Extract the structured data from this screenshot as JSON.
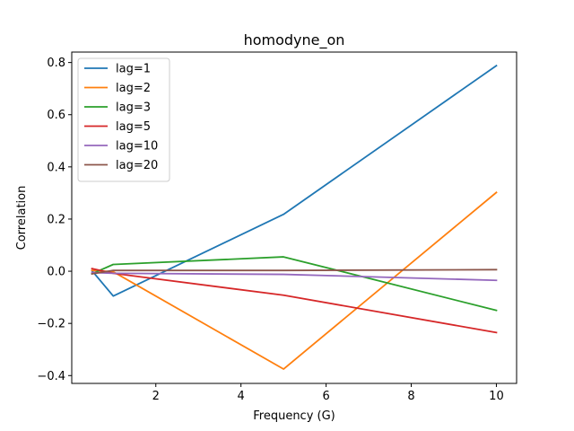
{
  "chart_data": {
    "type": "line",
    "title": "homodyne_on",
    "xlabel": "Frequency (G)",
    "ylabel": "Correlation",
    "xlim": [
      0.025,
      10.475
    ],
    "ylim": [
      -0.43,
      0.84
    ],
    "xticks": [
      2,
      4,
      6,
      8,
      10
    ],
    "yticks": [
      -0.4,
      -0.2,
      0.0,
      0.2,
      0.4,
      0.6,
      0.8
    ],
    "xtick_labels": [
      "2",
      "4",
      "6",
      "8",
      "10"
    ],
    "ytick_labels": [
      "−0.4",
      "−0.2",
      "0.0",
      "0.2",
      "0.4",
      "0.6",
      "0.8"
    ],
    "grid": false,
    "legend_position": "upper-left",
    "x": [
      0.5,
      1,
      5,
      10
    ],
    "series": [
      {
        "name": "lag=1",
        "color": "#1f77b4",
        "values": [
          0.002,
          -0.095,
          0.218,
          0.788
        ]
      },
      {
        "name": "lag=2",
        "color": "#ff7f0e",
        "values": [
          0.003,
          -0.002,
          -0.375,
          0.302
        ]
      },
      {
        "name": "lag=3",
        "color": "#2ca02c",
        "values": [
          -0.01,
          0.026,
          0.055,
          -0.15
        ]
      },
      {
        "name": "lag=5",
        "color": "#d62728",
        "values": [
          0.01,
          -0.008,
          -0.092,
          -0.235
        ]
      },
      {
        "name": "lag=10",
        "color": "#9467bd",
        "values": [
          -0.005,
          -0.008,
          -0.012,
          -0.035
        ]
      },
      {
        "name": "lag=20",
        "color": "#8c564b",
        "values": [
          -0.01,
          0.003,
          0.003,
          0.006
        ]
      }
    ]
  }
}
